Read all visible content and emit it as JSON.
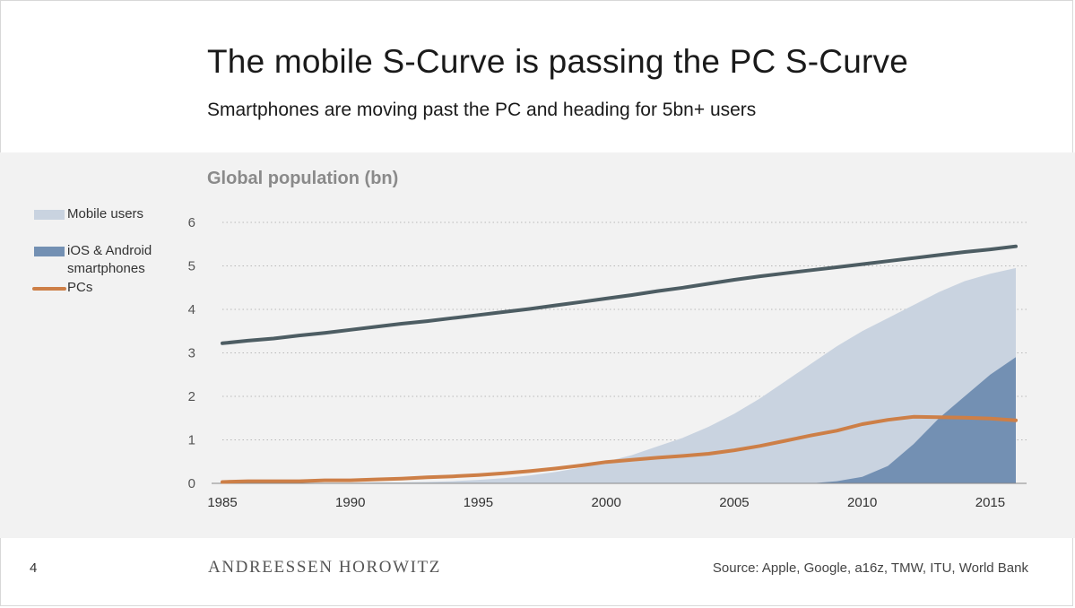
{
  "header": {
    "title": "The mobile S-Curve is passing the PC S-Curve",
    "subtitle": "Smartphones are moving past the PC and heading for 5bn+ users"
  },
  "footer": {
    "page_number": "4",
    "brand": "ANDREESSEN HOROWITZ",
    "source": "Source: Apple, Google, a16z, TMW, ITU, World Bank"
  },
  "chart_data": {
    "type": "area",
    "title": "Global population (bn)",
    "x": [
      1985,
      1986,
      1987,
      1988,
      1989,
      1990,
      1991,
      1992,
      1993,
      1994,
      1995,
      1996,
      1997,
      1998,
      1999,
      2000,
      2001,
      2002,
      2003,
      2004,
      2005,
      2006,
      2007,
      2008,
      2009,
      2010,
      2011,
      2012,
      2013,
      2014,
      2015,
      2016
    ],
    "xlim": [
      1985,
      2016
    ],
    "ylim": [
      0,
      6
    ],
    "xticks": [
      1985,
      1990,
      1995,
      2000,
      2005,
      2010,
      2015
    ],
    "yticks": [
      0,
      1,
      2,
      3,
      4,
      5,
      6
    ],
    "grid": "horizontal-dotted",
    "legend": "left",
    "series": [
      {
        "name": "",
        "kind": "line",
        "color": "#4d5d63",
        "values": [
          3.22,
          3.28,
          3.33,
          3.4,
          3.46,
          3.53,
          3.6,
          3.67,
          3.73,
          3.8,
          3.87,
          3.94,
          4.01,
          4.09,
          4.17,
          4.25,
          4.33,
          4.42,
          4.5,
          4.59,
          4.68,
          4.76,
          4.83,
          4.9,
          4.97,
          5.04,
          5.11,
          5.18,
          5.25,
          5.32,
          5.38,
          5.45
        ]
      },
      {
        "name": "Mobile users",
        "kind": "area",
        "color": "#c9d3e0",
        "values": [
          0,
          0,
          0,
          0.01,
          0.01,
          0.01,
          0.02,
          0.02,
          0.03,
          0.05,
          0.08,
          0.12,
          0.18,
          0.26,
          0.36,
          0.5,
          0.65,
          0.85,
          1.05,
          1.3,
          1.6,
          1.95,
          2.35,
          2.75,
          3.15,
          3.5,
          3.8,
          4.1,
          4.4,
          4.65,
          4.82,
          4.95
        ]
      },
      {
        "name": "iOS & Android smartphones",
        "kind": "area",
        "color": "#7390b3",
        "values": [
          0,
          0,
          0,
          0,
          0,
          0,
          0,
          0,
          0,
          0,
          0,
          0,
          0,
          0,
          0,
          0,
          0,
          0,
          0,
          0,
          0,
          0,
          0,
          0,
          0.05,
          0.15,
          0.4,
          0.9,
          1.5,
          2.0,
          2.5,
          2.9
        ]
      },
      {
        "name": "PCs",
        "kind": "line",
        "color": "#cd7f47",
        "values": [
          0.03,
          0.05,
          0.05,
          0.05,
          0.07,
          0.07,
          0.09,
          0.11,
          0.14,
          0.16,
          0.19,
          0.23,
          0.28,
          0.34,
          0.41,
          0.49,
          0.54,
          0.59,
          0.63,
          0.68,
          0.76,
          0.86,
          0.98,
          1.1,
          1.21,
          1.36,
          1.46,
          1.53,
          1.52,
          1.51,
          1.49,
          1.45
        ]
      }
    ]
  }
}
